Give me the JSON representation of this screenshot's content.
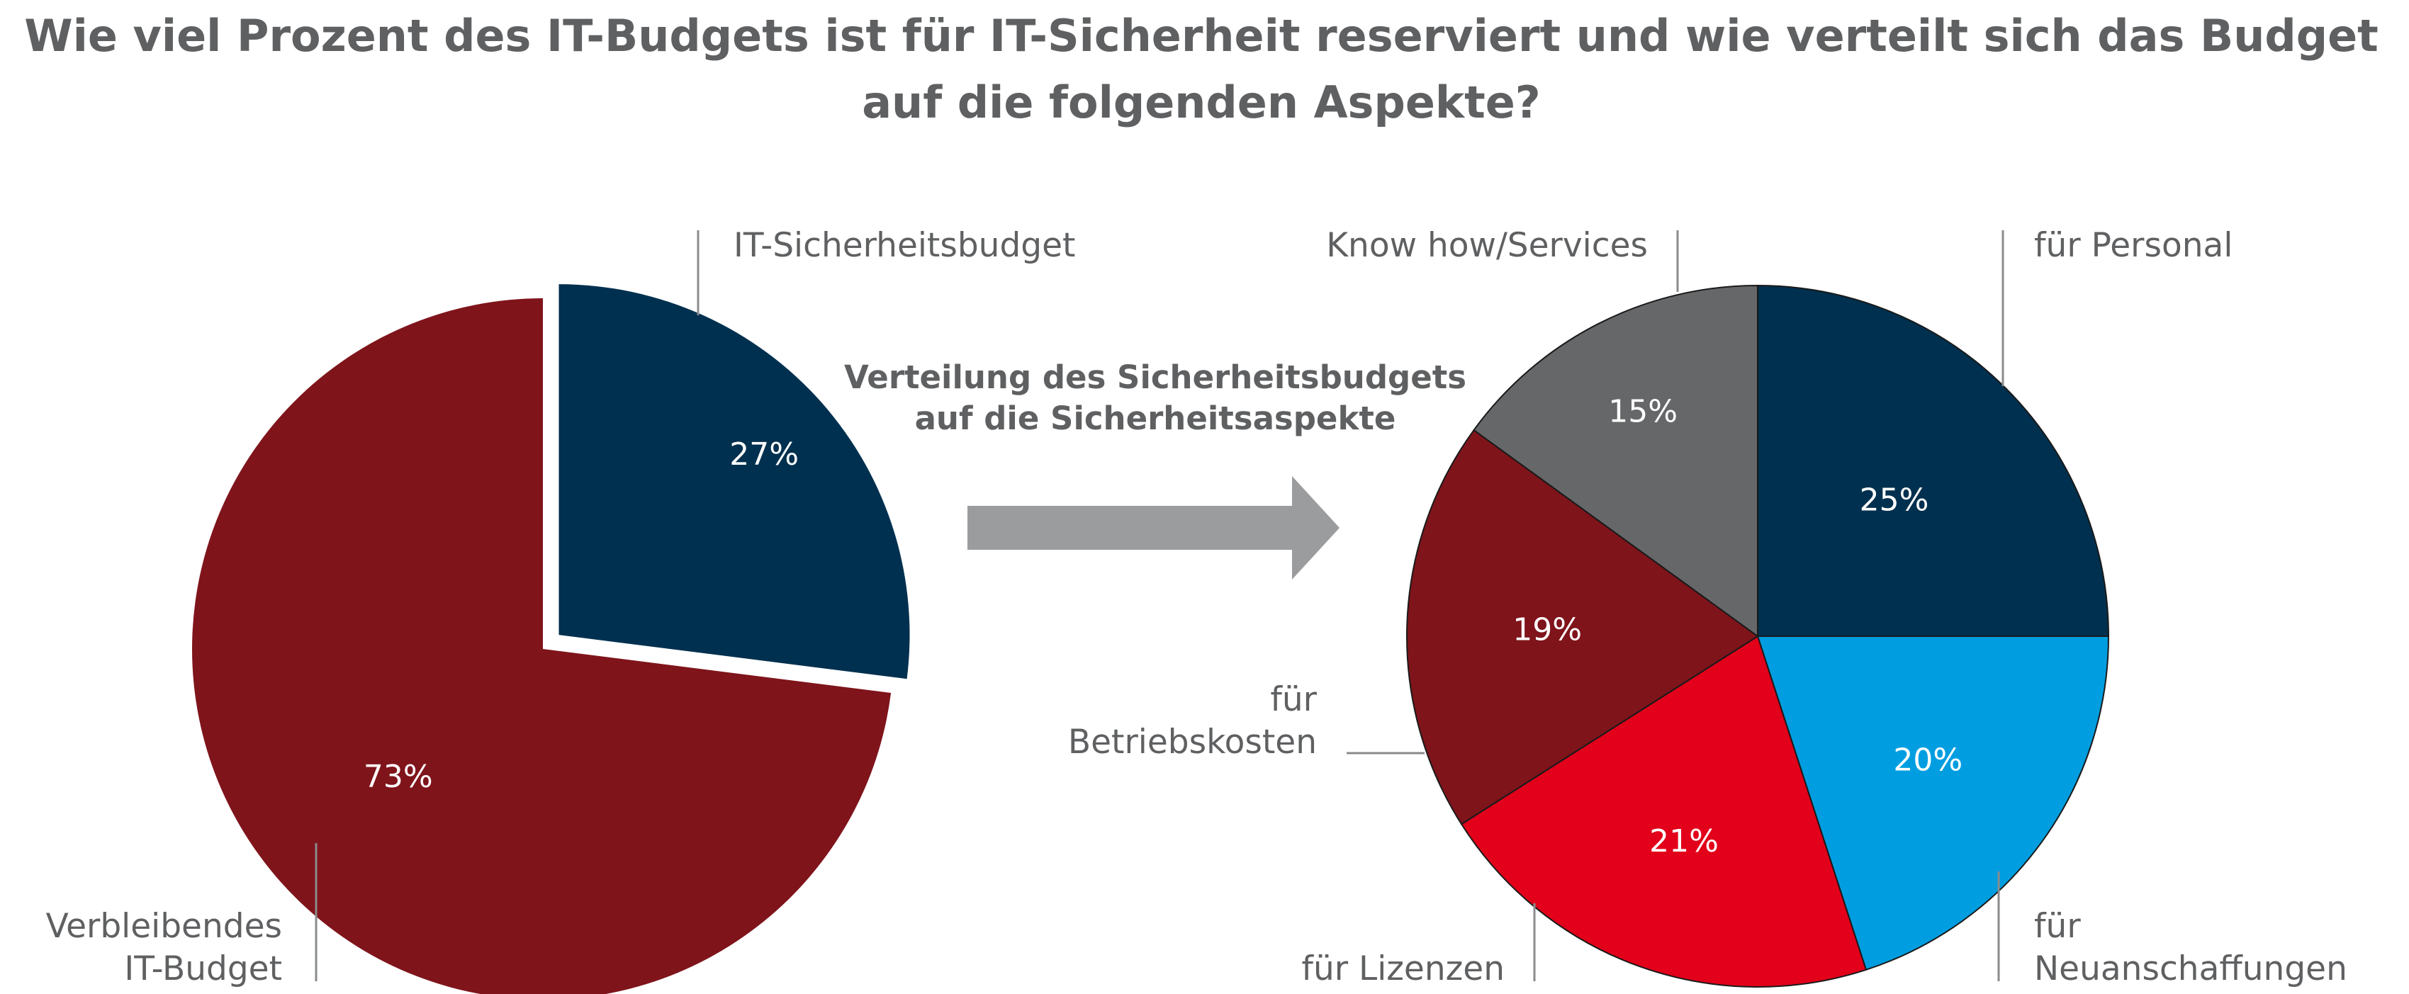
{
  "title_line1": "Wie viel Prozent des IT-Budgets ist für IT-Sicherheit reserviert und wie verteilt sich das Budget",
  "title_line2": "auf die folgenden Aspekte?",
  "center_label_line1": "Verteilung des Sicherheitsbudgets",
  "center_label_line2": "auf die Sicherheitsaspekte",
  "colors": {
    "navy": "#00304f",
    "dark_red": "#7f141b",
    "red": "#e2001a",
    "light_blue": "#009ee0",
    "gray": "#666769",
    "arrow": "#9b9c9e",
    "text": "#5f6062"
  },
  "chart_data": [
    {
      "type": "pie",
      "slices": [
        {
          "label": "IT-Sicherheitsbudget",
          "value": 27,
          "value_label": "27%",
          "color": "#00304f",
          "exploded": true
        },
        {
          "label_lines": [
            "Verbleibendes",
            "IT-Budget"
          ],
          "value": 73,
          "value_label": "73%",
          "color": "#7f141b",
          "exploded": false
        }
      ]
    },
    {
      "type": "pie",
      "slices": [
        {
          "label": "für Personal",
          "value": 25,
          "value_label": "25%",
          "color": "#00304f"
        },
        {
          "label_lines": [
            "für",
            "Neuanschaffungen"
          ],
          "value": 20,
          "value_label": "20%",
          "color": "#009ee0"
        },
        {
          "label": "für Lizenzen",
          "value": 21,
          "value_label": "21%",
          "color": "#e2001a"
        },
        {
          "label_lines": [
            "für",
            "Betriebskosten"
          ],
          "value": 19,
          "value_label": "19%",
          "color": "#7f141b"
        },
        {
          "label": "Know how/Services",
          "value": 15,
          "value_label": "15%",
          "color": "#666769"
        }
      ]
    }
  ]
}
